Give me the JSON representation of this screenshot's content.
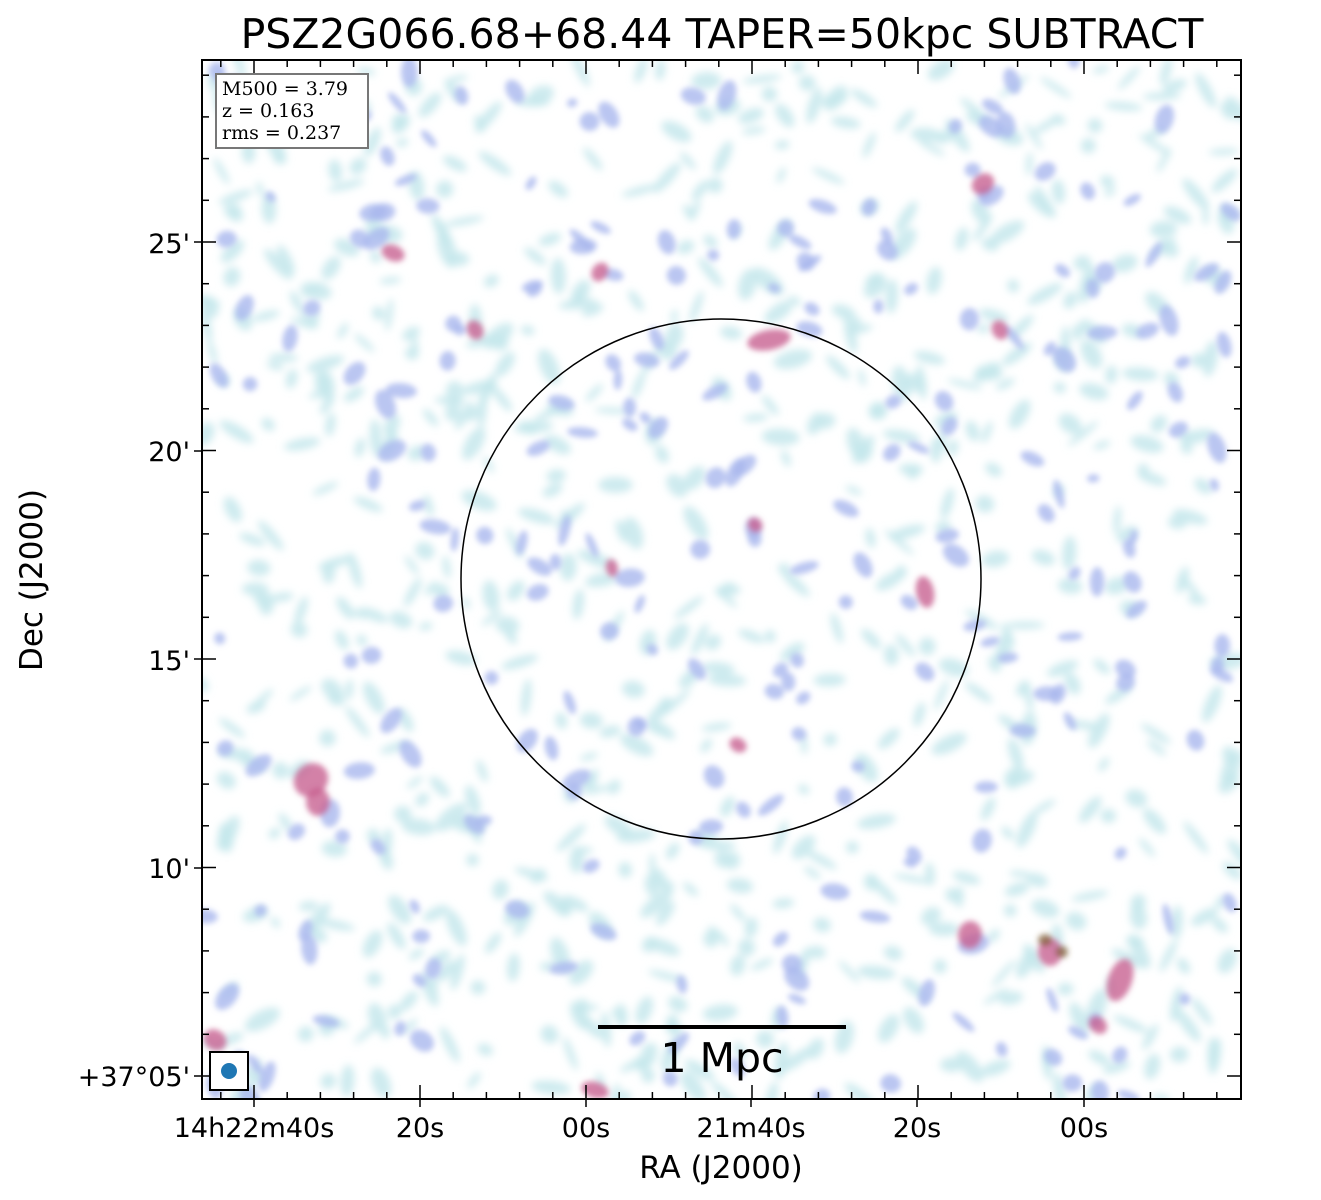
{
  "title": "PSZ2G066.68+68.44 TAPER=50kpc SUBTRACT",
  "axes": {
    "xlabel": "RA (J2000)",
    "ylabel": "Dec (J2000)",
    "x_ticks": [
      "14h22m40s",
      "20s",
      "00s",
      "21m40s",
      "20s",
      "00s"
    ],
    "y_ticks": [
      "+37°05'",
      "10'",
      "15'",
      "20'",
      "25'"
    ]
  },
  "info_box": {
    "line1": "M500 = 3.79",
    "line2": "z = 0.163",
    "line3": "rms = 0.237"
  },
  "scale_bar": {
    "label": "1 Mpc"
  },
  "colors": {
    "noise_light": "#c5e8ec",
    "noise_mid": "#a9b8ee",
    "emission": "#c65e8e",
    "emission_peak": "#7a5a2e",
    "beam": "#1f77b4"
  }
}
